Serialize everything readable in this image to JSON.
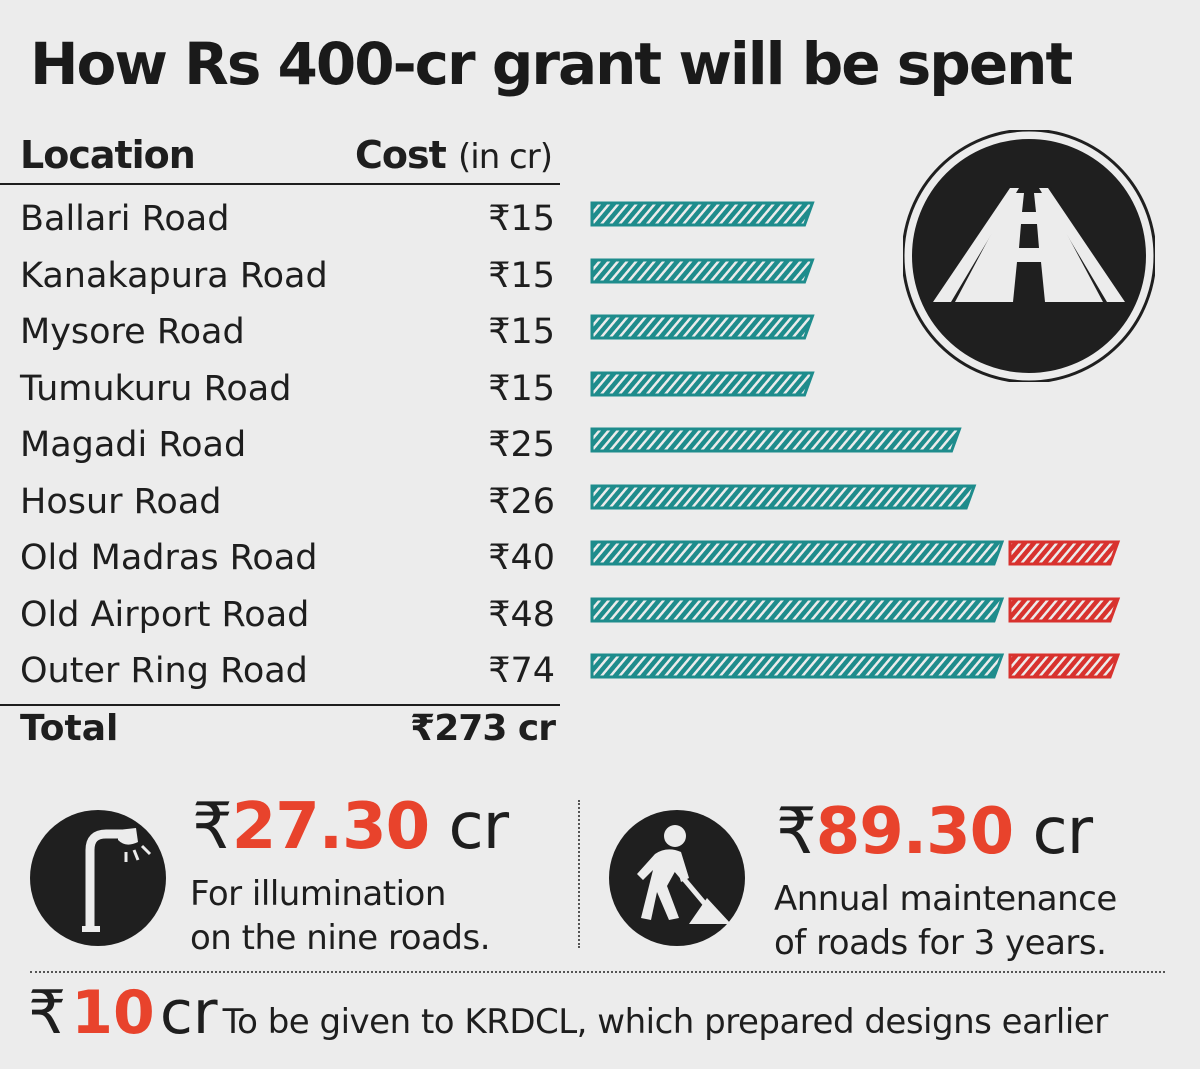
{
  "title": "How Rs 400-cr grant will be spent",
  "header": {
    "location": "Location",
    "cost": "Cost",
    "cost_unit": "(in cr)"
  },
  "chart_data": {
    "type": "bar",
    "categories": [
      "Ballari Road",
      "Kanakapura Road",
      "Mysore Road",
      "Tumukuru Road",
      "Magadi Road",
      "Hosur Road",
      "Old Madras Road",
      "Old Airport Road",
      "Outer Ring Road"
    ],
    "cost_labels": [
      "₹15",
      "₹15",
      "₹15",
      "₹15",
      "₹25",
      "₹26",
      "₹40",
      "₹48",
      "₹74"
    ],
    "values": [
      15,
      15,
      15,
      15,
      25,
      26,
      40,
      48,
      74
    ],
    "colors": {
      "bar": "#1e8c8c",
      "overflow": "#d8322e"
    }
  },
  "total": {
    "label": "Total",
    "value": "₹273 cr"
  },
  "illumination": {
    "currency": "₹",
    "amount": "27.30",
    "unit": "cr",
    "line1": "For illumination",
    "line2": "on the nine roads."
  },
  "maintenance": {
    "currency": "₹",
    "amount": "89.30",
    "unit": "cr",
    "line1": "Annual maintenance",
    "line2": "of roads for 3 years."
  },
  "krdcl": {
    "currency": "₹",
    "amount": "10",
    "unit": "cr",
    "text": "To be given to KRDCL, which prepared designs earlier"
  },
  "icons": {
    "road": "road-icon",
    "lamp": "street-lamp-icon",
    "worker": "road-worker-icon"
  }
}
